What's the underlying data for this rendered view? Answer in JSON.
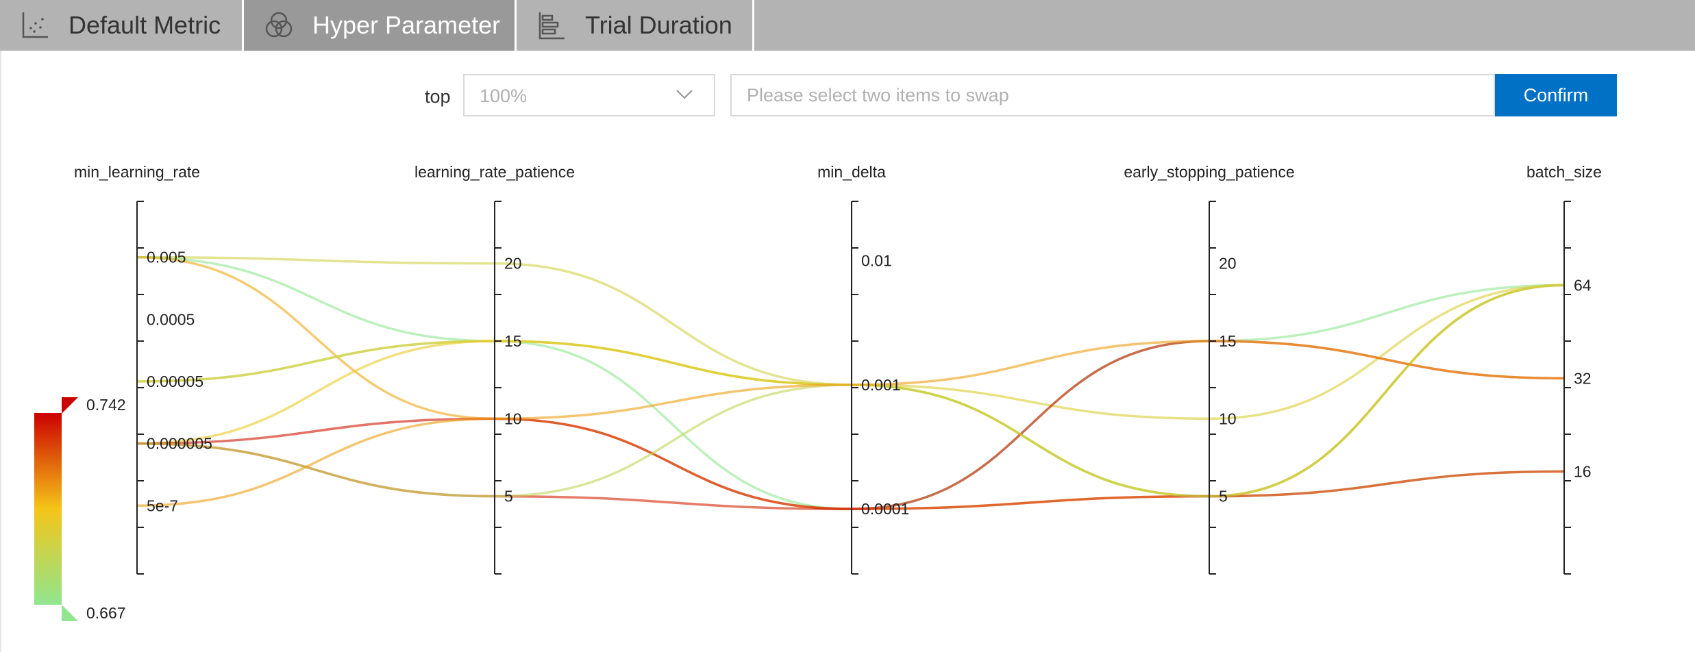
{
  "tabs": [
    {
      "label": "Default Metric",
      "icon": "scatter-plot-icon",
      "active": false
    },
    {
      "label": "Hyper Parameter",
      "icon": "venn-circles-icon",
      "active": true
    },
    {
      "label": "Trial Duration",
      "icon": "bar-chart-icon",
      "active": false
    }
  ],
  "controls": {
    "top_label": "top",
    "top_value": "100%",
    "swap_placeholder": "Please select two items to swap",
    "confirm_label": "Confirm"
  },
  "colors": {
    "accent": "#0071c5",
    "scale_high": "#cc0000",
    "scale_mid": "#f5c518",
    "scale_low": "#8fe68f"
  },
  "chart_data": {
    "type": "parallel_coordinates",
    "axes": [
      {
        "name": "min_learning_rate",
        "scale": "categorical",
        "ticks": [
          "0.005",
          "0.0005",
          "0.00005",
          "0.000005",
          "5e-7"
        ]
      },
      {
        "name": "learning_rate_patience",
        "scale": "linear",
        "range": [
          0,
          24
        ],
        "ticks": [
          5,
          10,
          15,
          20
        ]
      },
      {
        "name": "min_delta",
        "scale": "log",
        "range": [
          3e-05,
          0.03
        ],
        "ticks": [
          "0.0001",
          "0.001",
          "0.01"
        ]
      },
      {
        "name": "early_stopping_patience",
        "scale": "linear",
        "range": [
          0,
          24
        ],
        "ticks": [
          5,
          10,
          15,
          20
        ]
      },
      {
        "name": "batch_size",
        "scale": "categorical",
        "ticks": [
          "16",
          "32",
          "64"
        ]
      }
    ],
    "color_scale": {
      "min": 0.667,
      "max": 0.742,
      "min_label": "0.667",
      "max_label": "0.742"
    },
    "trials": [
      {
        "min_learning_rate": "0.005",
        "learning_rate_patience": 20,
        "min_delta": 0.001,
        "early_stopping_patience": 5,
        "batch_size": 64,
        "metric": 0.69
      },
      {
        "min_learning_rate": "0.005",
        "learning_rate_patience": 15,
        "min_delta": 0.0001,
        "early_stopping_patience": 15,
        "batch_size": 64,
        "metric": 0.667
      },
      {
        "min_learning_rate": "0.005",
        "learning_rate_patience": 10,
        "min_delta": 0.0001,
        "early_stopping_patience": 5,
        "batch_size": 64,
        "metric": 0.71
      },
      {
        "min_learning_rate": "0.00005",
        "learning_rate_patience": 15,
        "min_delta": 0.001,
        "early_stopping_patience": 10,
        "batch_size": 64,
        "metric": 0.695
      },
      {
        "min_learning_rate": "0.00005",
        "learning_rate_patience": 15,
        "min_delta": 0.001,
        "early_stopping_patience": 5,
        "batch_size": 16,
        "metric": 0.688
      },
      {
        "min_learning_rate": "0.000005",
        "learning_rate_patience": 15,
        "min_delta": 0.001,
        "early_stopping_patience": 5,
        "batch_size": 64,
        "metric": 0.7
      },
      {
        "min_learning_rate": "0.000005",
        "learning_rate_patience": 10,
        "min_delta": 0.0001,
        "early_stopping_patience": 15,
        "batch_size": 32,
        "metric": 0.738
      },
      {
        "min_learning_rate": "0.000005",
        "learning_rate_patience": 5,
        "min_delta": 0.0001,
        "early_stopping_patience": 5,
        "batch_size": 16,
        "metric": 0.735
      },
      {
        "min_learning_rate": "0.000005",
        "learning_rate_patience": 5,
        "min_delta": 0.001,
        "early_stopping_patience": 5,
        "batch_size": 64,
        "metric": 0.685
      },
      {
        "min_learning_rate": "5e-7",
        "learning_rate_patience": 10,
        "min_delta": 0.001,
        "early_stopping_patience": 15,
        "batch_size": 32,
        "metric": 0.712
      }
    ]
  }
}
